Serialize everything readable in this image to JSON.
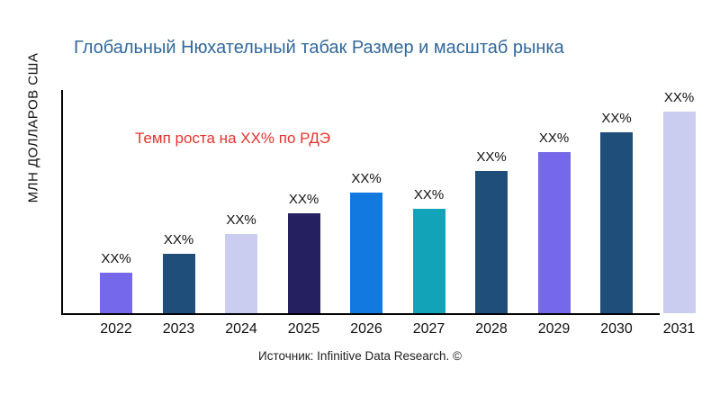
{
  "title": "Глобальный Нюхательный табак Размер и масштаб рынка",
  "annotation": "Темп роста на XX% по РДЭ",
  "ylabel": "МЛН ДОЛЛАРОВ США",
  "source": "Источник: Infinitive Data Research. ©",
  "colors": {
    "title": "#31689B",
    "annotation": "#E3342F",
    "axis": "#000000",
    "text": "#111111"
  },
  "chart_data": {
    "type": "bar",
    "title": "Глобальный Нюхательный табак Размер и масштаб рынка",
    "xlabel": "",
    "ylabel": "МЛН ДОЛЛАРОВ США",
    "categories": [
      "2022",
      "2023",
      "2024",
      "2025",
      "2026",
      "2027",
      "2028",
      "2029",
      "2030",
      "2031"
    ],
    "values": [
      45,
      67,
      89,
      112,
      135,
      117,
      159,
      180,
      203,
      226
    ],
    "values_note": "Actual values are masked as XX% in the source image; numbers are estimated relative bar heights.",
    "value_labels": [
      "XX%",
      "XX%",
      "XX%",
      "XX%",
      "XX%",
      "XX%",
      "XX%",
      "XX%",
      "XX%",
      "XX%"
    ],
    "bar_colors": [
      "#7668EA",
      "#1F4E7B",
      "#CACCF0",
      "#252161",
      "#1279E0",
      "#12A3B8",
      "#1F4E7B",
      "#7668EA",
      "#1F4E7B",
      "#CACCF0"
    ],
    "ylim": [
      0,
      250
    ],
    "grid": false,
    "legend": false,
    "annotation": {
      "text": "Темп роста на XX% по РДЭ",
      "color": "#E3342F"
    }
  }
}
